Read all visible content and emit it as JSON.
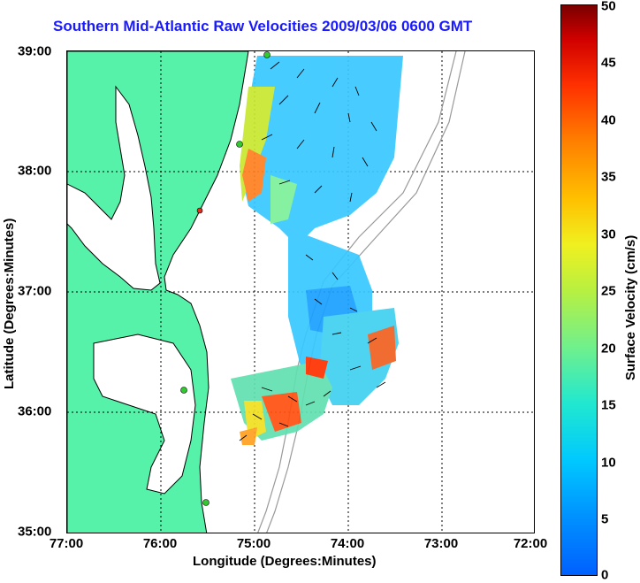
{
  "title": "Southern Mid-Atlantic Raw Velocities 2009/03/06 0600 GMT",
  "x_axis": {
    "label": "Longitude (Degrees:Minutes)",
    "ticks": [
      "77:00",
      "76:00",
      "75:00",
      "74:00",
      "73:00",
      "72:00"
    ]
  },
  "y_axis": {
    "label": "Latitude (Degrees:Minutes)",
    "ticks": [
      "39:00",
      "38:00",
      "37:00",
      "36:00",
      "35:00"
    ]
  },
  "colorbar": {
    "label": "Surface Velocity (cm/s)",
    "ticks": [
      "50",
      "45",
      "40",
      "35",
      "30",
      "25",
      "20",
      "15",
      "10",
      "5",
      "0"
    ],
    "min": 0,
    "max": 50
  },
  "colors": {
    "land": "#57f2aa",
    "title": "#1a1aff"
  }
}
